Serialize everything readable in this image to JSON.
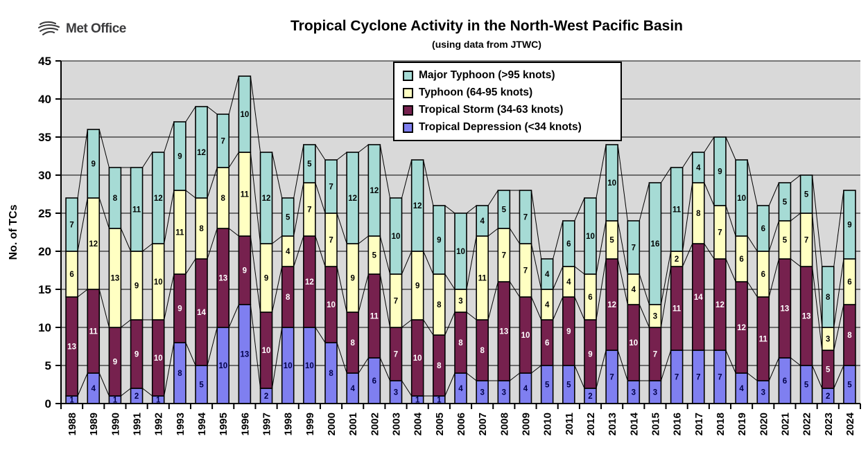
{
  "header": {
    "logo_text": "Met Office",
    "title": "Tropical Cyclone Activity in the North-West Pacific Basin",
    "subtitle": "(using data from JTWC)"
  },
  "chart_data": {
    "type": "bar",
    "stacked": true,
    "title": "Tropical Cyclone Activity in the North-West Pacific Basin",
    "subtitle": "(using data from JTWC)",
    "xlabel": "",
    "ylabel": "No. of TCs",
    "ylim": [
      0,
      45
    ],
    "ytick_step": 5,
    "grid": true,
    "plot_bg": "#D9D9D9",
    "series_lines": true,
    "legend_position": "top-right",
    "categories": [
      "1988",
      "1989",
      "1990",
      "1991",
      "1992",
      "1993",
      "1994",
      "1995",
      "1996",
      "1997",
      "1998",
      "1999",
      "2000",
      "2001",
      "2002",
      "2003",
      "2004",
      "2005",
      "2006",
      "2007",
      "2008",
      "2009",
      "2010",
      "2011",
      "2012",
      "2013",
      "2014",
      "2015",
      "2016",
      "2017",
      "2018",
      "2019",
      "2020",
      "2021",
      "2022",
      "2023",
      "2024"
    ],
    "series": [
      {
        "name": "Tropical Depression (<34 knots)",
        "color": "#7F7FF0",
        "label_color": "#00004A",
        "values": [
          1,
          4,
          1,
          2,
          1,
          8,
          5,
          10,
          13,
          2,
          10,
          10,
          8,
          4,
          6,
          3,
          1,
          1,
          4,
          3,
          3,
          4,
          5,
          5,
          2,
          7,
          3,
          3,
          7,
          7,
          7,
          4,
          3,
          6,
          5,
          2,
          5
        ]
      },
      {
        "name": "Tropical Storm (34-63 knots)",
        "color": "#76214E",
        "label_color": "#FFFFFF",
        "values": [
          13,
          11,
          9,
          9,
          10,
          9,
          14,
          13,
          9,
          10,
          8,
          12,
          10,
          8,
          11,
          7,
          10,
          8,
          8,
          8,
          13,
          10,
          6,
          9,
          9,
          12,
          10,
          7,
          11,
          14,
          12,
          12,
          11,
          13,
          13,
          5,
          8
        ]
      },
      {
        "name": "Typhoon (64-95 knots)",
        "color": "#FFFFC2",
        "label_color": "#000000",
        "values": [
          6,
          12,
          13,
          9,
          10,
          11,
          8,
          8,
          11,
          9,
          4,
          7,
          7,
          9,
          5,
          7,
          9,
          8,
          3,
          11,
          7,
          7,
          4,
          4,
          6,
          5,
          4,
          3,
          2,
          8,
          7,
          6,
          6,
          5,
          7,
          3,
          6
        ]
      },
      {
        "name": "Major Typhoon (>95 knots)",
        "color": "#A6DBD5",
        "label_color": "#000000",
        "values": [
          7,
          9,
          8,
          11,
          12,
          9,
          12,
          7,
          10,
          12,
          5,
          5,
          7,
          12,
          12,
          10,
          12,
          9,
          10,
          4,
          5,
          7,
          4,
          6,
          10,
          10,
          7,
          16,
          11,
          4,
          9,
          10,
          6,
          5,
          5,
          8,
          9
        ]
      }
    ]
  }
}
